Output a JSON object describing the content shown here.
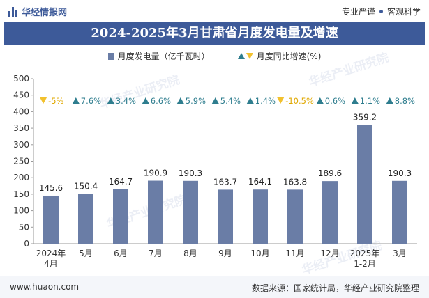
{
  "header": {
    "brand": "华经情报网",
    "tags": [
      "专业严谨",
      "客观科学"
    ]
  },
  "watermark": "华经产业研究院",
  "chart_data": {
    "type": "bar",
    "title": "2024-2025年3月甘肃省月度发电量及增速",
    "categories": [
      "2024年\n4月",
      "5月",
      "6月",
      "7月",
      "8月",
      "9月",
      "10月",
      "11月",
      "12月",
      "2025年\n1-2月",
      "3月"
    ],
    "series": [
      {
        "name": "月度发电量（亿千瓦时）",
        "values": [
          145.6,
          150.4,
          164.7,
          190.9,
          190.3,
          163.7,
          164.1,
          163.8,
          189.6,
          359.2,
          190.3
        ]
      }
    ],
    "growth": {
      "name": "月度同比增速(%)",
      "values": [
        -5,
        7.6,
        3.4,
        6.6,
        5.9,
        5.4,
        1.4,
        -10.5,
        0.6,
        1.1,
        8.8
      ],
      "labels": [
        "-5%",
        "7.6%",
        "3.4%",
        "6.6%",
        "5.9%",
        "5.4%",
        "1.4%",
        "-10.5%",
        "0.6%",
        "1.1%",
        "8.8%"
      ]
    },
    "ylim": [
      0,
      500
    ],
    "yticks": [
      0,
      50,
      100,
      150,
      200,
      250,
      300,
      350,
      400,
      450,
      500
    ],
    "legend_position": "top-center",
    "colors": {
      "bar": "#6a7da6",
      "up": "#2e7d8e",
      "down": "#f2c12e",
      "title_bg": "#3d5a99"
    }
  },
  "footer": {
    "website": "www.huaon.com",
    "source": "数据来源：国家统计局，华经产业研究院整理"
  }
}
